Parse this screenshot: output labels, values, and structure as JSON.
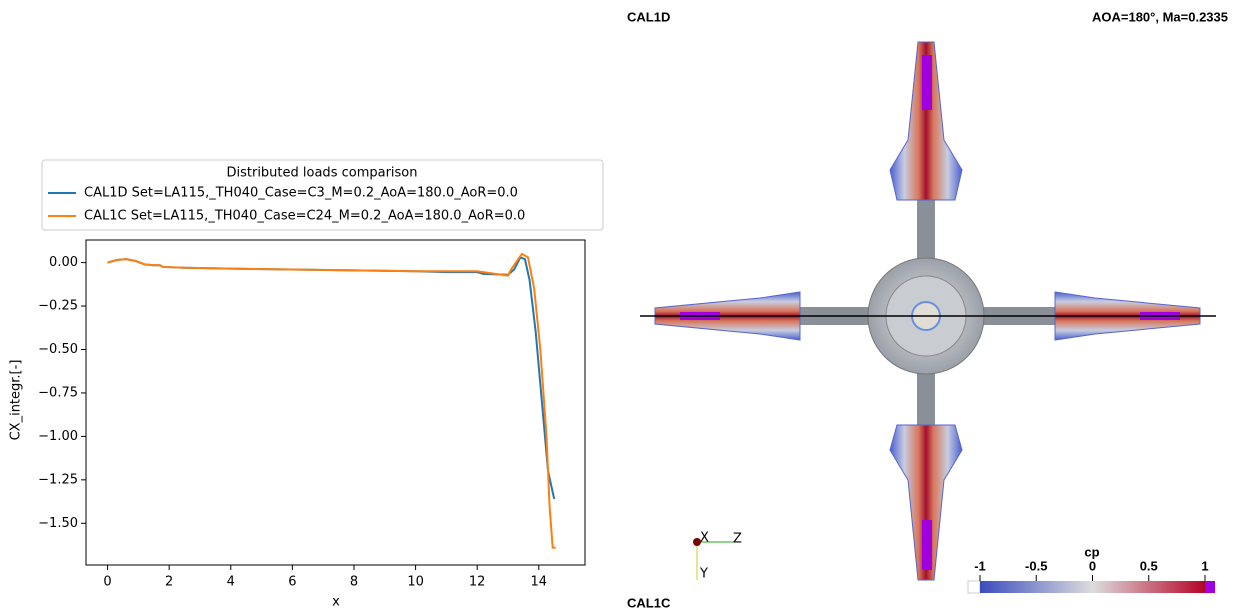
{
  "chart_data": {
    "type": "line",
    "legend_title": "Distributed loads comparison",
    "xlabel": "x",
    "ylabel": "CX_integr.[-]",
    "xlim": [
      -0.7,
      15.5
    ],
    "ylim": [
      -1.74,
      0.13
    ],
    "xticks": [
      0,
      2,
      4,
      6,
      8,
      10,
      12,
      14
    ],
    "yticks": [
      {
        "value": 0,
        "label": "0.00"
      },
      {
        "value": -0.25,
        "label": "−0.25"
      },
      {
        "value": -0.5,
        "label": "−0.50"
      },
      {
        "value": -0.75,
        "label": "−0.75"
      },
      {
        "value": -1,
        "label": "−1.00"
      },
      {
        "value": -1.25,
        "label": "−1.25"
      },
      {
        "value": -1.5,
        "label": "−1.50"
      }
    ],
    "legend": "upper center",
    "series": [
      {
        "name": "CAL1D Set=LA115,_TH040_Case=C3_M=0.2_AoA=180.0_AoR=0.0",
        "color": "#1f77b4",
        "x": [
          0,
          0.3,
          0.6,
          0.9,
          1.2,
          1.5,
          1.7,
          1.8,
          2.5,
          4,
          6,
          8,
          10,
          11,
          12,
          12.2,
          13,
          13.2,
          13.4,
          13.55,
          13.7,
          13.9,
          14.1,
          14.3,
          14.5
        ],
        "values": [
          0,
          0.015,
          0.02,
          0.01,
          -0.01,
          -0.015,
          -0.015,
          -0.025,
          -0.03,
          -0.035,
          -0.04,
          -0.045,
          -0.05,
          -0.055,
          -0.055,
          -0.065,
          -0.07,
          -0.04,
          0.03,
          0.02,
          -0.1,
          -0.4,
          -0.8,
          -1.2,
          -1.36
        ]
      },
      {
        "name": "CAL1C Set=LA115,_TH040_Case=C24_M=0.2_AoA=180.0_AoR=0.0",
        "color": "#ff7f0e",
        "x": [
          0,
          0.3,
          0.6,
          0.9,
          1.2,
          1.5,
          1.7,
          1.8,
          2.5,
          4,
          6,
          8,
          10,
          11,
          12,
          13,
          13.1,
          13.45,
          13.65,
          13.85,
          14.05,
          14.25,
          14.35,
          14.45,
          14.55
        ],
        "values": [
          0,
          0.015,
          0.02,
          0.01,
          -0.01,
          -0.015,
          -0.015,
          -0.025,
          -0.03,
          -0.035,
          -0.04,
          -0.045,
          -0.05,
          -0.05,
          -0.05,
          -0.075,
          -0.04,
          0.05,
          0.03,
          -0.15,
          -0.5,
          -1.0,
          -1.4,
          -1.64,
          -1.64
        ]
      }
    ]
  },
  "render": {
    "top_label": "CAL1D",
    "bottom_label": "CAL1C",
    "condition": "AOA=180°, Ma=0.2335",
    "axes": {
      "x": "X",
      "y": "Y",
      "z": "Z"
    },
    "colorbar": {
      "label": "cp",
      "lim": [
        -1,
        1
      ],
      "ticks": [
        -1,
        -0.5,
        0,
        0.5,
        1
      ]
    }
  }
}
